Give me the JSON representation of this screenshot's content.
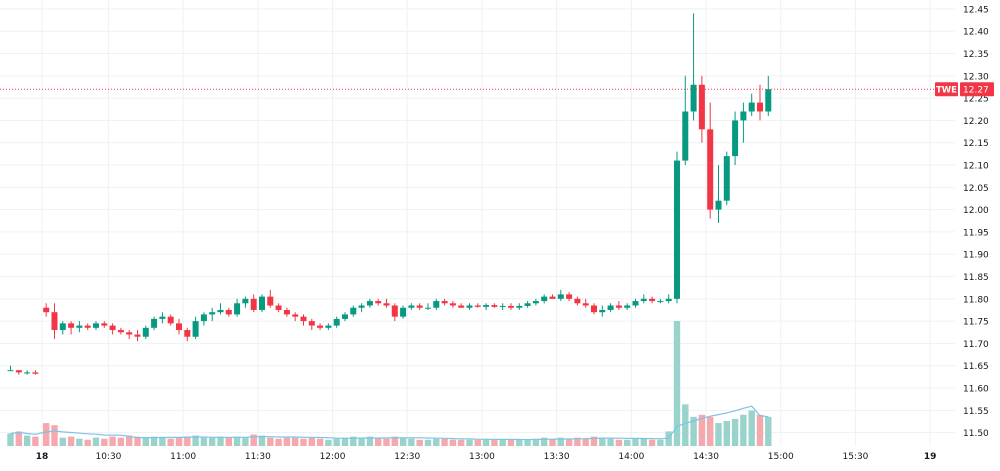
{
  "chart_data": {
    "type": "candlestick",
    "symbol": "TWE",
    "last_price": 12.27,
    "last_price_label": "12.27",
    "ylim": [
      11.47,
      12.47
    ],
    "y_ticks": [
      11.5,
      11.55,
      11.6,
      11.65,
      11.7,
      11.75,
      11.8,
      11.85,
      11.9,
      11.95,
      12.0,
      12.05,
      12.1,
      12.15,
      12.2,
      12.25,
      12.3,
      12.35,
      12.4,
      12.45
    ],
    "x_ticks": [
      {
        "label": "18",
        "bar": 3.5
      },
      {
        "label": "10:30",
        "bar": 11.5
      },
      {
        "label": "11:00",
        "bar": 20.5
      },
      {
        "label": "11:30",
        "bar": 29.5
      },
      {
        "label": "12:00",
        "bar": 38.5
      },
      {
        "label": "12:30",
        "bar": 47.5
      },
      {
        "label": "13:00",
        "bar": 56.5
      },
      {
        "label": "13:30",
        "bar": 65.5
      },
      {
        "label": "14:00",
        "bar": 74.5
      },
      {
        "label": "14:30",
        "bar": 83.5
      },
      {
        "label": "15:00",
        "bar": 92.5
      },
      {
        "label": "15:30",
        "bar": 101.5
      },
      {
        "label": "19",
        "bar": 110.5
      }
    ],
    "colors": {
      "up": "#089981",
      "down": "#f23645",
      "up_volume": "#9ad3cb",
      "down_volume": "#f5a8ad",
      "volume_ma": "#7dc4e8",
      "grid": "#eef1f5",
      "price_line": "#f23645",
      "axis_text": "#131722"
    },
    "gap_after_bar": 3,
    "candles": [
      [
        11.64,
        11.65,
        11.64,
        11.64,
        12
      ],
      [
        11.64,
        11.64,
        11.63,
        11.635,
        14
      ],
      [
        11.635,
        11.64,
        11.63,
        11.635,
        10
      ],
      [
        11.635,
        11.64,
        11.63,
        11.632,
        9
      ],
      [
        11.78,
        11.79,
        11.76,
        11.77,
        22
      ],
      [
        11.77,
        11.79,
        11.71,
        11.73,
        20
      ],
      [
        11.73,
        11.75,
        11.72,
        11.745,
        8
      ],
      [
        11.745,
        11.75,
        11.72,
        11.735,
        9
      ],
      [
        11.735,
        11.75,
        11.725,
        11.74,
        7
      ],
      [
        11.74,
        11.745,
        11.73,
        11.735,
        6
      ],
      [
        11.735,
        11.75,
        11.73,
        11.745,
        8
      ],
      [
        11.745,
        11.75,
        11.735,
        11.74,
        7
      ],
      [
        11.74,
        11.745,
        11.72,
        11.73,
        9
      ],
      [
        11.73,
        11.735,
        11.72,
        11.725,
        8
      ],
      [
        11.725,
        11.73,
        11.71,
        11.72,
        10
      ],
      [
        11.72,
        11.73,
        11.705,
        11.715,
        9
      ],
      [
        11.715,
        11.74,
        11.71,
        11.735,
        8
      ],
      [
        11.735,
        11.76,
        11.73,
        11.755,
        9
      ],
      [
        11.755,
        11.77,
        11.745,
        11.76,
        8
      ],
      [
        11.76,
        11.765,
        11.74,
        11.745,
        7
      ],
      [
        11.745,
        11.755,
        11.72,
        11.73,
        8
      ],
      [
        11.73,
        11.735,
        11.705,
        11.715,
        9
      ],
      [
        11.715,
        11.76,
        11.71,
        11.75,
        10
      ],
      [
        11.75,
        11.77,
        11.74,
        11.765,
        8
      ],
      [
        11.765,
        11.78,
        11.75,
        11.77,
        8
      ],
      [
        11.77,
        11.79,
        11.765,
        11.775,
        9
      ],
      [
        11.775,
        11.78,
        11.76,
        11.765,
        8
      ],
      [
        11.765,
        11.8,
        11.76,
        11.79,
        9
      ],
      [
        11.79,
        11.805,
        11.78,
        11.8,
        8
      ],
      [
        11.8,
        11.81,
        11.77,
        11.775,
        11
      ],
      [
        11.775,
        11.81,
        11.77,
        11.805,
        10
      ],
      [
        11.805,
        11.82,
        11.78,
        11.785,
        8
      ],
      [
        11.785,
        11.79,
        11.77,
        11.775,
        7
      ],
      [
        11.775,
        11.78,
        11.76,
        11.765,
        8
      ],
      [
        11.765,
        11.77,
        11.75,
        11.76,
        8
      ],
      [
        11.76,
        11.765,
        11.74,
        11.75,
        7
      ],
      [
        11.75,
        11.755,
        11.73,
        11.74,
        8
      ],
      [
        11.74,
        11.745,
        11.73,
        11.735,
        7
      ],
      [
        11.735,
        11.745,
        11.73,
        11.74,
        6
      ],
      [
        11.74,
        11.76,
        11.735,
        11.755,
        7
      ],
      [
        11.755,
        11.77,
        11.75,
        11.765,
        8
      ],
      [
        11.765,
        11.785,
        11.76,
        11.78,
        9
      ],
      [
        11.78,
        11.79,
        11.77,
        11.785,
        8
      ],
      [
        11.785,
        11.8,
        11.78,
        11.795,
        9
      ],
      [
        11.795,
        11.8,
        11.785,
        11.79,
        8
      ],
      [
        11.79,
        11.8,
        11.78,
        11.785,
        7
      ],
      [
        11.785,
        11.79,
        11.75,
        11.76,
        9
      ],
      [
        11.76,
        11.785,
        11.755,
        11.78,
        8
      ],
      [
        11.78,
        11.79,
        11.775,
        11.785,
        7
      ],
      [
        11.785,
        11.79,
        11.775,
        11.78,
        6
      ],
      [
        11.78,
        11.79,
        11.775,
        11.78,
        6
      ],
      [
        11.78,
        11.8,
        11.775,
        11.795,
        7
      ],
      [
        11.795,
        11.8,
        11.785,
        11.79,
        7
      ],
      [
        11.79,
        11.795,
        11.78,
        11.785,
        6
      ],
      [
        11.785,
        11.79,
        11.78,
        11.78,
        6
      ],
      [
        11.78,
        11.79,
        11.775,
        11.785,
        6
      ],
      [
        11.785,
        11.79,
        11.78,
        11.782,
        6
      ],
      [
        11.782,
        11.79,
        11.775,
        11.786,
        7
      ],
      [
        11.786,
        11.79,
        11.78,
        11.782,
        6
      ],
      [
        11.782,
        11.79,
        11.775,
        11.784,
        6
      ],
      [
        11.784,
        11.79,
        11.775,
        11.78,
        6
      ],
      [
        11.78,
        11.79,
        11.775,
        11.784,
        6
      ],
      [
        11.784,
        11.795,
        11.78,
        11.79,
        6
      ],
      [
        11.79,
        11.8,
        11.785,
        11.795,
        7
      ],
      [
        11.795,
        11.81,
        11.79,
        11.805,
        8
      ],
      [
        11.805,
        11.81,
        11.8,
        11.8,
        7
      ],
      [
        11.8,
        11.82,
        11.795,
        11.81,
        8
      ],
      [
        11.81,
        11.815,
        11.795,
        11.8,
        7
      ],
      [
        11.8,
        11.805,
        11.785,
        11.79,
        8
      ],
      [
        11.79,
        11.8,
        11.78,
        11.785,
        7
      ],
      [
        11.785,
        11.79,
        11.765,
        11.77,
        9
      ],
      [
        11.77,
        11.785,
        11.76,
        11.775,
        8
      ],
      [
        11.775,
        11.79,
        11.77,
        11.785,
        7
      ],
      [
        11.785,
        11.795,
        11.775,
        11.78,
        6
      ],
      [
        11.78,
        11.79,
        11.775,
        11.785,
        6
      ],
      [
        11.785,
        11.8,
        11.78,
        11.795,
        7
      ],
      [
        11.795,
        11.81,
        11.79,
        11.8,
        7
      ],
      [
        11.8,
        11.805,
        11.79,
        11.795,
        6
      ],
      [
        11.795,
        11.8,
        11.79,
        11.795,
        6
      ],
      [
        11.795,
        11.81,
        11.79,
        11.8,
        14
      ],
      [
        11.8,
        12.13,
        11.79,
        12.11,
        120
      ],
      [
        12.11,
        12.3,
        12.1,
        12.22,
        40
      ],
      [
        12.22,
        12.44,
        12.2,
        12.28,
        28
      ],
      [
        12.28,
        12.3,
        12.15,
        12.18,
        30
      ],
      [
        12.18,
        12.24,
        11.98,
        12.0,
        28
      ],
      [
        12.0,
        12.1,
        11.97,
        12.02,
        22
      ],
      [
        12.02,
        12.13,
        12.01,
        12.12,
        24
      ],
      [
        12.12,
        12.22,
        12.1,
        12.2,
        26
      ],
      [
        12.2,
        12.24,
        12.15,
        12.22,
        30
      ],
      [
        12.22,
        12.26,
        12.21,
        12.24,
        34
      ],
      [
        12.24,
        12.28,
        12.2,
        12.22,
        30
      ],
      [
        12.22,
        12.3,
        12.21,
        12.27,
        28
      ]
    ]
  }
}
